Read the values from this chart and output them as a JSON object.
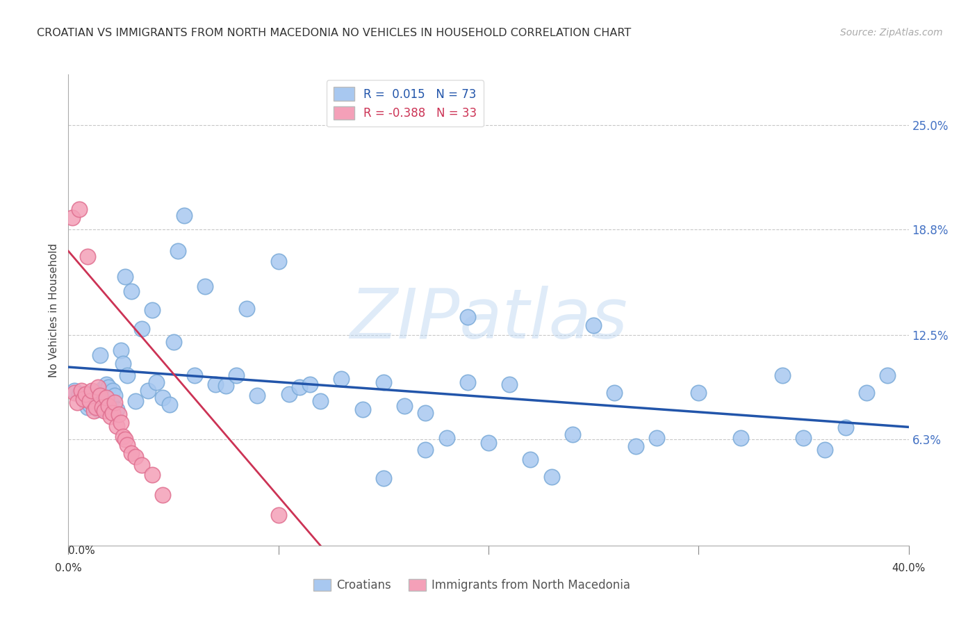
{
  "title": "CROATIAN VS IMMIGRANTS FROM NORTH MACEDONIA NO VEHICLES IN HOUSEHOLD CORRELATION CHART",
  "source": "Source: ZipAtlas.com",
  "ylabel": "No Vehicles in Household",
  "xmin": 0.0,
  "xmax": 0.4,
  "ymin": 0.0,
  "ymax": 0.28,
  "yticks": [
    0.063,
    0.125,
    0.188,
    0.25
  ],
  "ytick_labels": [
    "6.3%",
    "12.5%",
    "18.8%",
    "25.0%"
  ],
  "xticks": [
    0.0,
    0.1,
    0.2,
    0.3,
    0.4
  ],
  "blue_R": 0.015,
  "blue_N": 73,
  "pink_R": -0.388,
  "pink_N": 33,
  "blue_color": "#A8C8F0",
  "pink_color": "#F4A0B8",
  "blue_edge_color": "#7AAAD8",
  "pink_edge_color": "#E07090",
  "blue_line_color": "#2255AA",
  "pink_line_color": "#CC3355",
  "watermark": "ZIPatlas",
  "background_color": "#FFFFFF",
  "legend_label_blue": "Croatians",
  "legend_label_pink": "Immigrants from North Macedonia",
  "blue_scatter_x": [
    0.003,
    0.005,
    0.007,
    0.008,
    0.009,
    0.01,
    0.011,
    0.012,
    0.013,
    0.014,
    0.015,
    0.016,
    0.017,
    0.018,
    0.019,
    0.02,
    0.021,
    0.022,
    0.023,
    0.025,
    0.026,
    0.027,
    0.028,
    0.03,
    0.032,
    0.035,
    0.038,
    0.04,
    0.042,
    0.045,
    0.048,
    0.05,
    0.052,
    0.055,
    0.06,
    0.065,
    0.07,
    0.075,
    0.08,
    0.085,
    0.09,
    0.1,
    0.105,
    0.11,
    0.115,
    0.12,
    0.13,
    0.14,
    0.15,
    0.16,
    0.17,
    0.18,
    0.19,
    0.2,
    0.21,
    0.22,
    0.23,
    0.24,
    0.25,
    0.26,
    0.27,
    0.28,
    0.3,
    0.32,
    0.34,
    0.35,
    0.36,
    0.37,
    0.38,
    0.39,
    0.15,
    0.17,
    0.19
  ],
  "blue_scatter_y": [
    0.092,
    0.09,
    0.087,
    0.089,
    0.082,
    0.084,
    0.091,
    0.089,
    0.083,
    0.081,
    0.113,
    0.093,
    0.087,
    0.096,
    0.094,
    0.086,
    0.092,
    0.089,
    0.081,
    0.116,
    0.108,
    0.16,
    0.101,
    0.151,
    0.086,
    0.129,
    0.092,
    0.14,
    0.097,
    0.088,
    0.084,
    0.121,
    0.175,
    0.196,
    0.101,
    0.154,
    0.096,
    0.095,
    0.101,
    0.141,
    0.089,
    0.169,
    0.09,
    0.094,
    0.096,
    0.086,
    0.099,
    0.081,
    0.097,
    0.083,
    0.079,
    0.064,
    0.097,
    0.061,
    0.096,
    0.051,
    0.041,
    0.066,
    0.131,
    0.091,
    0.059,
    0.064,
    0.091,
    0.064,
    0.101,
    0.064,
    0.057,
    0.07,
    0.091,
    0.101,
    0.04,
    0.057,
    0.136
  ],
  "pink_scatter_x": [
    0.002,
    0.003,
    0.004,
    0.005,
    0.006,
    0.007,
    0.008,
    0.009,
    0.01,
    0.011,
    0.012,
    0.013,
    0.014,
    0.015,
    0.016,
    0.017,
    0.018,
    0.019,
    0.02,
    0.021,
    0.022,
    0.023,
    0.024,
    0.025,
    0.026,
    0.027,
    0.028,
    0.03,
    0.032,
    0.035,
    0.04,
    0.045,
    0.1
  ],
  "pink_scatter_y": [
    0.195,
    0.091,
    0.085,
    0.2,
    0.092,
    0.087,
    0.09,
    0.172,
    0.086,
    0.092,
    0.08,
    0.082,
    0.094,
    0.089,
    0.082,
    0.08,
    0.088,
    0.083,
    0.077,
    0.079,
    0.085,
    0.071,
    0.078,
    0.073,
    0.065,
    0.063,
    0.06,
    0.055,
    0.053,
    0.048,
    0.042,
    0.03,
    0.018
  ],
  "blue_trend_x0": 0.0,
  "blue_trend_x1": 0.4,
  "blue_trend_y0": 0.092,
  "blue_trend_y1": 0.096,
  "pink_trend_x0": 0.0,
  "pink_trend_x1": 0.12,
  "pink_trend_y0": 0.175,
  "pink_trend_y1": 0.0
}
